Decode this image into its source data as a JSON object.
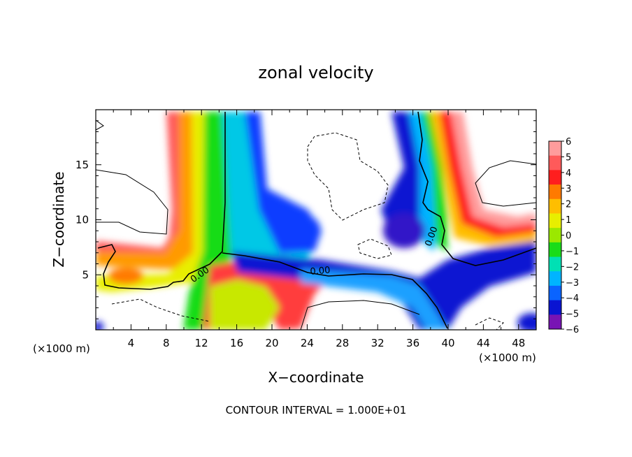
{
  "chart_data": {
    "type": "heatmap",
    "title": "zonal velocity",
    "xlabel": "X−coordinate",
    "ylabel": "Z−coordinate",
    "x_unit_left": "(×1000 m)",
    "x_unit_right": "(×1000 m)",
    "footer": "CONTOUR INTERVAL = 1.000E+01",
    "xlim": [
      0,
      50
    ],
    "ylim": [
      0,
      20
    ],
    "x_ticks": [
      4,
      8,
      12,
      16,
      20,
      24,
      28,
      32,
      36,
      40,
      44,
      48
    ],
    "y_ticks": [
      5,
      10,
      15
    ],
    "colorbar": {
      "min": -6,
      "max": 6,
      "tick_labels": [
        "6",
        "5",
        "4",
        "3",
        "2",
        "1",
        "0",
        "−1",
        "−2",
        "−3",
        "−4",
        "−5",
        "−6"
      ],
      "colors": [
        "#ff9c9c",
        "#ff5a5a",
        "#ff1e1e",
        "#ff7a00",
        "#ffbe00",
        "#e8ee00",
        "#9be800",
        "#19dc19",
        "#00e0b4",
        "#00b4ff",
        "#0a64ff",
        "#0a14d2",
        "#7814b4"
      ]
    },
    "contour_labels": [
      {
        "text": "0.00",
        "x": 12.0,
        "y": 4.8
      },
      {
        "text": "0.00",
        "x": 25.5,
        "y": 5.1
      },
      {
        "text": "0.00",
        "x": 38.4,
        "y": 8.4
      }
    ]
  }
}
